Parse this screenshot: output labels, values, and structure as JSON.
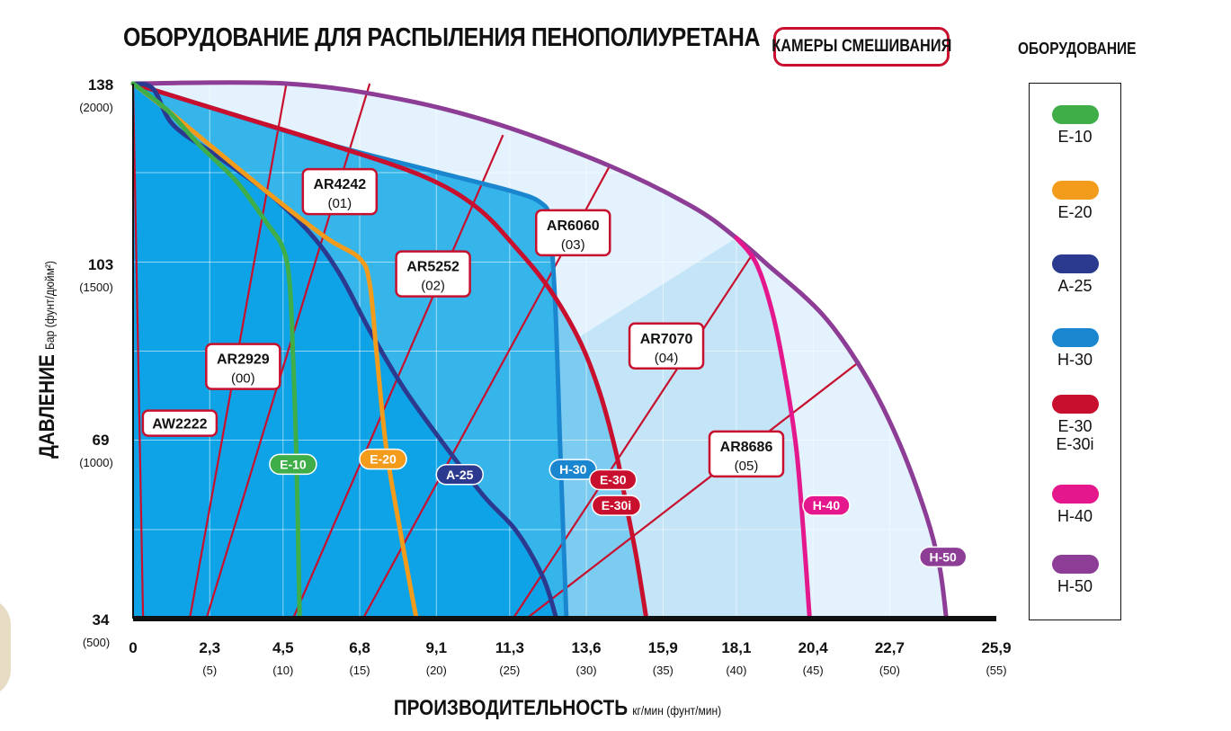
{
  "header": {
    "title": "ОБОРУДОВАНИЕ ДЛЯ РАСПЫЛЕНИЯ ПЕНОПОЛИУРЕТАНА",
    "chambers_badge": "КАМЕРЫ СМЕШИВАНИЯ",
    "legend_title": "ОБОРУДОВАНИЕ"
  },
  "legend": [
    {
      "label": "E-10",
      "color": "#3fae49"
    },
    {
      "label": "E-20",
      "color": "#f39c1c"
    },
    {
      "label": "A-25",
      "color": "#2b3a8f"
    },
    {
      "label": "H-30",
      "color": "#1a86d0"
    },
    {
      "label": "E-30\nE-30i",
      "color": "#c8102e"
    },
    {
      "label": "H-40",
      "color": "#e5178c"
    },
    {
      "label": "H-50",
      "color": "#8e3d96"
    }
  ],
  "chart_data": {
    "type": "line",
    "title": "ОБОРУДОВАНИЕ ДЛЯ РАСПЫЛЕНИЯ ПЕНОПОЛИУРЕТАНА",
    "xlabel": "ПРОИЗВОДИТЕЛЬНОСТЬ",
    "xlabel_units": "кг/мин (фунт/мин)",
    "ylabel": "ДАВЛЕНИЕ",
    "ylabel_units": "Бар (фунт/дюйм²)",
    "xlim": [
      0,
      25.9
    ],
    "ylim": [
      34,
      138
    ],
    "grid": true,
    "x_ticks": [
      {
        "value": 0,
        "label": "0",
        "sub": ""
      },
      {
        "value": 2.3,
        "label": "2,3",
        "sub": "(5)"
      },
      {
        "value": 4.5,
        "label": "4,5",
        "sub": "(10)"
      },
      {
        "value": 6.8,
        "label": "6,8",
        "sub": "(15)"
      },
      {
        "value": 9.1,
        "label": "9,1",
        "sub": "(20)"
      },
      {
        "value": 11.3,
        "label": "11,3",
        "sub": "(25)"
      },
      {
        "value": 13.6,
        "label": "13,6",
        "sub": "(30)"
      },
      {
        "value": 15.9,
        "label": "15,9",
        "sub": "(35)"
      },
      {
        "value": 18.1,
        "label": "18,1",
        "sub": "(40)"
      },
      {
        "value": 20.4,
        "label": "20,4",
        "sub": "(45)"
      },
      {
        "value": 22.7,
        "label": "22,7",
        "sub": "(50)"
      },
      {
        "value": 25.9,
        "label": "25,9",
        "sub": "(55)"
      }
    ],
    "y_ticks": [
      {
        "value": 138,
        "label": "138",
        "sub": "(2000)"
      },
      {
        "value": 103,
        "label": "103",
        "sub": "(1500)"
      },
      {
        "value": 69,
        "label": "69",
        "sub": "(1000)"
      },
      {
        "value": 34,
        "label": "34",
        "sub": "(500)"
      }
    ],
    "series": [
      {
        "name": "H-50",
        "color": "#8e3d96",
        "label_at": [
          24.3,
          46
        ],
        "points": [
          [
            0,
            138
          ],
          [
            4.6,
            138
          ],
          [
            8,
            135
          ],
          [
            11,
            130
          ],
          [
            14.3,
            122
          ],
          [
            16.8,
            114
          ],
          [
            18.1,
            108
          ],
          [
            19,
            103
          ],
          [
            20.7,
            93
          ],
          [
            22,
            81
          ],
          [
            23,
            68
          ],
          [
            23.8,
            54
          ],
          [
            24.2,
            44
          ],
          [
            24.4,
            34
          ]
        ]
      },
      {
        "name": "H-40",
        "color": "#e5178c",
        "label_at": [
          20.8,
          56
        ],
        "points": [
          [
            18.1,
            108
          ],
          [
            18.7,
            103
          ],
          [
            19.2,
            93
          ],
          [
            19.6,
            80
          ],
          [
            19.9,
            67
          ],
          [
            20.1,
            52
          ],
          [
            20.3,
            34
          ]
        ]
      },
      {
        "name": "H-30",
        "color": "#1a86d0",
        "label_at": [
          13.2,
          63
        ],
        "points": [
          [
            0,
            138
          ],
          [
            3,
            132
          ],
          [
            6,
            126
          ],
          [
            9,
            121
          ],
          [
            11.4,
            117
          ],
          [
            12.2,
            115
          ],
          [
            12.5,
            112
          ],
          [
            12.6,
            103
          ],
          [
            12.7,
            90
          ],
          [
            12.8,
            70
          ],
          [
            12.9,
            52
          ],
          [
            13,
            34
          ]
        ]
      },
      {
        "name": "E-30",
        "color": "#c8102e",
        "label_at": [
          14.4,
          61
        ],
        "points": [
          [
            0,
            138
          ],
          [
            3,
            132
          ],
          [
            6,
            126
          ],
          [
            8.7,
            120
          ],
          [
            10.3,
            114
          ],
          [
            11.5,
            106
          ],
          [
            12.5,
            98
          ],
          [
            13.4,
            88
          ],
          [
            14,
            78
          ],
          [
            14.5,
            66
          ],
          [
            14.8,
            56
          ],
          [
            15.1,
            46
          ],
          [
            15.4,
            34
          ]
        ]
      },
      {
        "name": "A-25",
        "color": "#2b3a8f",
        "label_at": [
          9.8,
          62
        ],
        "points": [
          [
            0,
            138
          ],
          [
            0.6,
            137
          ],
          [
            1.2,
            130
          ],
          [
            2.5,
            124
          ],
          [
            4,
            117
          ],
          [
            5.3,
            109
          ],
          [
            6.2,
            101
          ],
          [
            7.1,
            90
          ],
          [
            8.1,
            79
          ],
          [
            9.2,
            69
          ],
          [
            10.5,
            58
          ],
          [
            11.5,
            51
          ],
          [
            12.3,
            42
          ],
          [
            12.7,
            34
          ]
        ]
      },
      {
        "name": "E-20",
        "color": "#f39c1c",
        "label_at": [
          7.5,
          65
        ],
        "points": [
          [
            0,
            138
          ],
          [
            1,
            133
          ],
          [
            2.5,
            125
          ],
          [
            4.2,
            116
          ],
          [
            5.8,
            108
          ],
          [
            6.8,
            104
          ],
          [
            7.1,
            99
          ],
          [
            7.3,
            86
          ],
          [
            7.6,
            67
          ],
          [
            8.1,
            48
          ],
          [
            8.5,
            34
          ]
        ]
      },
      {
        "name": "E-10",
        "color": "#3fae49",
        "label_at": [
          4.8,
          64
        ],
        "points": [
          [
            0,
            138
          ],
          [
            1,
            133
          ],
          [
            2,
            126
          ],
          [
            3.1,
            119
          ],
          [
            4,
            111
          ],
          [
            4.5,
            106
          ],
          [
            4.7,
            99
          ],
          [
            4.8,
            85
          ],
          [
            4.9,
            66
          ],
          [
            4.95,
            50
          ],
          [
            5,
            34
          ]
        ]
      }
    ],
    "e30i_label_at": [
      14.5,
      56
    ],
    "e30i_label": "E-30i",
    "mixing_chambers": [
      {
        "name": "AW2222",
        "code": "",
        "line": [
          [
            0.3,
            34
          ],
          [
            0,
            138
          ]
        ],
        "label_at": [
          1.4,
          72
        ]
      },
      {
        "name": "AR2929",
        "code": "(00)",
        "line": [
          [
            1.7,
            34
          ],
          [
            4.6,
            138
          ]
        ],
        "label_at": [
          3.3,
          83
        ]
      },
      {
        "name": "AR4242",
        "code": "(01)",
        "line": [
          [
            2.2,
            34
          ],
          [
            7.1,
            138
          ]
        ],
        "label_at": [
          6.2,
          117
        ]
      },
      {
        "name": "AR5252",
        "code": "(02)",
        "line": [
          [
            4.8,
            34
          ],
          [
            11.1,
            128
          ]
        ],
        "label_at": [
          9.0,
          101
        ]
      },
      {
        "name": "AR6060",
        "code": "(03)",
        "line": [
          [
            6.9,
            34
          ],
          [
            14.3,
            122
          ]
        ],
        "label_at": [
          13.2,
          109
        ]
      },
      {
        "name": "AR7070",
        "code": "(04)",
        "line": [
          [
            11.4,
            34
          ],
          [
            18.6,
            105
          ]
        ],
        "label_at": [
          16.0,
          87
        ]
      },
      {
        "name": "AR8686",
        "code": "(05)",
        "line": [
          [
            11.8,
            34
          ],
          [
            21.8,
            84
          ]
        ],
        "label_at": [
          18.4,
          66
        ]
      }
    ],
    "regions": [
      {
        "name": "H-50",
        "fill": "#e3f2fc"
      },
      {
        "name": "H-40",
        "fill": "#c4e4f8"
      },
      {
        "name": "E-30",
        "fill": "#7ccbf0"
      },
      {
        "name": "H-30",
        "fill": "#36b5ea"
      },
      {
        "name": "A-25",
        "fill": "#0ea3e6"
      }
    ]
  }
}
